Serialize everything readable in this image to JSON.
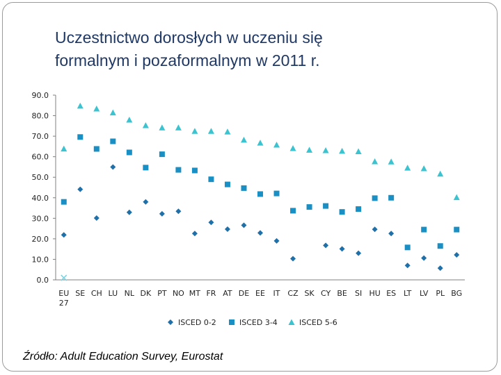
{
  "slide": {
    "title_line1": "Uczestnictwo dorosłych w uczeniu się",
    "title_line2": "formalnym i pozaformalnym w 2011 r.",
    "source": "Źródło: Adult Education Survey, Eurostat"
  },
  "chart_data": {
    "type": "scatter",
    "title": "",
    "xlabel": "",
    "ylabel": "",
    "ylim": [
      0,
      90
    ],
    "yticks": [
      "0.0",
      "10.0",
      "20.0",
      "30.0",
      "40.0",
      "50.0",
      "60.0",
      "70.0",
      "80.0",
      "90.0"
    ],
    "grid": false,
    "legend_position": "bottom",
    "categories": [
      "EU 27",
      "SE",
      "CH",
      "LU",
      "NL",
      "DK",
      "PT",
      "NO",
      "MT",
      "FR",
      "AT",
      "DE",
      "EE",
      "IT",
      "CZ",
      "SK",
      "CY",
      "BE",
      "SI",
      "HU",
      "ES",
      "LT",
      "LV",
      "PL",
      "BG"
    ],
    "category_labels": [
      [
        "EU",
        "27"
      ],
      [
        "SE"
      ],
      [
        "CH"
      ],
      [
        "LU"
      ],
      [
        "NL"
      ],
      [
        "DK"
      ],
      [
        "PT"
      ],
      [
        "NO"
      ],
      [
        "MT"
      ],
      [
        "FR"
      ],
      [
        "AT"
      ],
      [
        "DE"
      ],
      [
        "EE"
      ],
      [
        "IT"
      ],
      [
        "CZ"
      ],
      [
        "SK"
      ],
      [
        "CY"
      ],
      [
        "BE"
      ],
      [
        "SI"
      ],
      [
        "HU"
      ],
      [
        "ES"
      ],
      [
        "LT"
      ],
      [
        "LV"
      ],
      [
        "PL"
      ],
      [
        "BG"
      ]
    ],
    "series": [
      {
        "name": "ISCED 0-2",
        "marker": "diamond",
        "color": "#1f6fa8",
        "values": [
          21.9,
          44.1,
          30.1,
          55.0,
          32.9,
          38.0,
          32.2,
          33.4,
          22.6,
          28.0,
          24.7,
          26.6,
          22.9,
          19.0,
          10.3,
          null,
          16.8,
          15.1,
          13.0,
          24.6,
          22.6,
          7.0,
          10.6,
          5.7,
          12.2
        ]
      },
      {
        "name": "ISCED 3-4",
        "marker": "square",
        "color": "#1a8fc4",
        "values": [
          38.0,
          69.6,
          63.8,
          67.5,
          62.1,
          54.7,
          61.2,
          53.6,
          53.3,
          49.0,
          46.5,
          44.7,
          41.8,
          42.1,
          33.7,
          35.5,
          36.0,
          33.1,
          34.5,
          39.8,
          40.0,
          15.8,
          24.5,
          16.5,
          24.5
        ]
      },
      {
        "name": "ISCED 5-6",
        "marker": "triangle",
        "color": "#3cc3d0",
        "values": [
          63.9,
          84.8,
          83.4,
          81.5,
          78.0,
          75.3,
          74.2,
          74.2,
          72.5,
          72.5,
          72.2,
          68.2,
          66.8,
          65.8,
          64.1,
          63.3,
          63.1,
          62.8,
          62.6,
          57.7,
          57.6,
          54.6,
          54.3,
          51.7,
          40.2
        ]
      },
      {
        "name": "",
        "marker": "x",
        "color": "#7ed3e0",
        "show_in_legend": false,
        "values": [
          1.0,
          null,
          null,
          null,
          null,
          null,
          null,
          null,
          null,
          null,
          null,
          null,
          null,
          null,
          null,
          null,
          null,
          null,
          null,
          null,
          null,
          null,
          null,
          null,
          null
        ]
      }
    ]
  }
}
